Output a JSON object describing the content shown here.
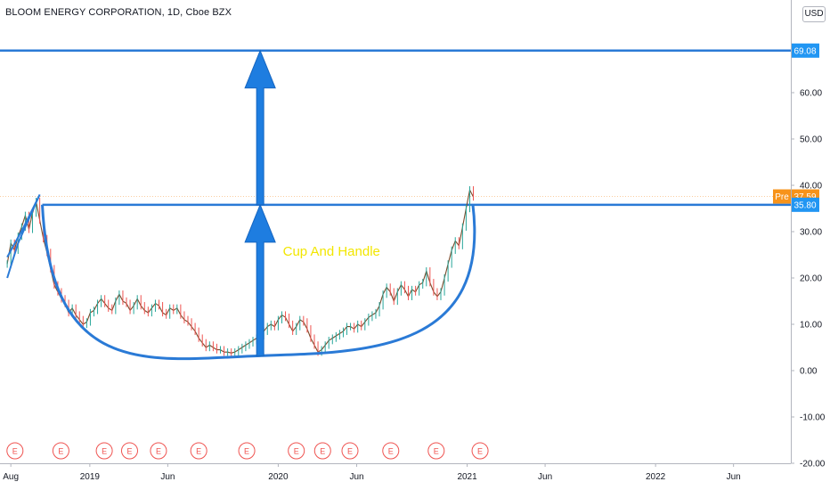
{
  "header": {
    "title": "BLOOM ENERGY CORPORATION, 1D, Cboe BZX",
    "currency": "USD"
  },
  "colors": {
    "accent": "#2a7ad6",
    "arrow": "#1e7de0",
    "label_blue": "#2196f3",
    "label_orange": "#f7931a",
    "annotation_text": "#f2e600",
    "earnings": "#ef5350",
    "candle_up": "#26a69a",
    "candle_down": "#ef5350"
  },
  "chart_data": {
    "type": "line",
    "x": [
      "2018-07-25",
      "2018-08-01",
      "2018-08-08",
      "2018-08-15",
      "2018-08-22",
      "2018-08-29",
      "2018-09-05",
      "2018-09-12",
      "2018-09-19",
      "2018-09-26",
      "2018-10-03",
      "2018-10-10",
      "2018-10-17",
      "2018-10-24",
      "2018-10-31",
      "2018-11-07",
      "2018-11-14",
      "2018-11-21",
      "2018-11-28",
      "2018-12-05",
      "2018-12-12",
      "2018-12-19",
      "2018-12-26",
      "2019-01-02",
      "2019-01-09",
      "2019-01-16",
      "2019-01-23",
      "2019-01-30",
      "2019-02-06",
      "2019-02-13",
      "2019-02-20",
      "2019-02-27",
      "2019-03-06",
      "2019-03-13",
      "2019-03-20",
      "2019-03-27",
      "2019-04-03",
      "2019-04-10",
      "2019-04-17",
      "2019-04-24",
      "2019-05-01",
      "2019-05-08",
      "2019-05-15",
      "2019-05-22",
      "2019-05-29",
      "2019-06-05",
      "2019-06-12",
      "2019-06-19",
      "2019-06-26",
      "2019-07-03",
      "2019-07-10",
      "2019-07-17",
      "2019-07-24",
      "2019-07-31",
      "2019-08-07",
      "2019-08-14",
      "2019-08-21",
      "2019-08-28",
      "2019-09-04",
      "2019-09-11",
      "2019-09-18",
      "2019-09-25",
      "2019-10-02",
      "2019-10-09",
      "2019-10-16",
      "2019-10-23",
      "2019-10-30",
      "2019-11-06",
      "2019-11-13",
      "2019-11-20",
      "2019-11-27",
      "2019-12-04",
      "2019-12-11",
      "2019-12-18",
      "2019-12-25",
      "2020-01-01",
      "2020-01-08",
      "2020-01-15",
      "2020-01-22",
      "2020-01-29",
      "2020-02-05",
      "2020-02-12",
      "2020-02-19",
      "2020-02-26",
      "2020-03-04",
      "2020-03-11",
      "2020-03-18",
      "2020-03-25",
      "2020-04-01",
      "2020-04-08",
      "2020-04-15",
      "2020-04-22",
      "2020-04-29",
      "2020-05-06",
      "2020-05-13",
      "2020-05-20",
      "2020-05-27",
      "2020-06-03",
      "2020-06-10",
      "2020-06-17",
      "2020-06-24",
      "2020-07-01",
      "2020-07-08",
      "2020-07-15",
      "2020-07-22",
      "2020-07-29",
      "2020-08-05",
      "2020-08-12",
      "2020-08-19",
      "2020-08-26",
      "2020-09-02",
      "2020-09-09",
      "2020-09-16",
      "2020-09-23",
      "2020-09-30",
      "2020-10-07",
      "2020-10-14",
      "2020-10-21",
      "2020-10-28",
      "2020-11-04",
      "2020-11-11",
      "2020-11-18",
      "2020-11-25",
      "2020-12-02",
      "2020-12-09",
      "2020-12-16",
      "2020-12-23",
      "2020-12-30",
      "2021-01-06",
      "2021-01-13"
    ],
    "series": [
      {
        "values": [
          23.0,
          27.5,
          26.0,
          29.0,
          31.0,
          33.5,
          30.5,
          34.0,
          36.5,
          32.5,
          28.5,
          25.5,
          22.0,
          18.5,
          17.0,
          15.5,
          14.5,
          12.5,
          13.5,
          12.0,
          11.0,
          10.0,
          10.5,
          12.5,
          13.0,
          14.5,
          15.5,
          14.5,
          13.5,
          13.0,
          15.0,
          16.5,
          15.0,
          14.5,
          13.0,
          14.0,
          15.5,
          14.0,
          13.0,
          12.5,
          13.5,
          14.5,
          14.0,
          12.5,
          12.0,
          13.5,
          13.0,
          13.5,
          12.0,
          11.0,
          10.5,
          9.5,
          8.5,
          7.0,
          6.0,
          5.0,
          5.5,
          5.0,
          4.5,
          4.5,
          4.0,
          4.0,
          3.8,
          4.0,
          4.5,
          5.0,
          5.5,
          6.0,
          6.5,
          7.0,
          7.5,
          8.5,
          9.5,
          10.0,
          9.5,
          11.0,
          12.0,
          11.5,
          10.0,
          8.5,
          9.5,
          11.0,
          10.5,
          9.0,
          7.0,
          5.5,
          4.0,
          4.5,
          5.5,
          6.5,
          7.0,
          7.5,
          8.0,
          8.5,
          9.5,
          9.5,
          9.0,
          10.0,
          9.5,
          10.5,
          11.5,
          12.0,
          12.5,
          14.0,
          16.5,
          18.0,
          17.0,
          15.0,
          17.0,
          18.5,
          17.5,
          16.0,
          17.5,
          17.0,
          18.5,
          19.0,
          21.5,
          19.0,
          17.0,
          16.0,
          17.0,
          20.0,
          23.0,
          26.0,
          28.0,
          27.0,
          31.0,
          35.0,
          39.0,
          37.5
        ]
      }
    ],
    "xlim": [
      "2018-07-11",
      "2022-09-20"
    ],
    "ylim": [
      -20.0,
      80.0
    ],
    "y_ticks": [
      -20,
      -10,
      0,
      10,
      20,
      30,
      40,
      50,
      60
    ],
    "y_tick_labels": [
      "-20.00",
      "-10.00",
      "0.00",
      "10.00",
      "20.00",
      "30.00",
      "40.00",
      "50.00",
      "60.00"
    ],
    "x_ticks": [
      "2018-08-01",
      "2019-01-01",
      "2019-06-01",
      "2020-01-01",
      "2020-06-01",
      "2021-01-01",
      "2021-06-01",
      "2022-01-01",
      "2022-06-01"
    ],
    "x_tick_labels": [
      "Aug",
      "2019",
      "Jun",
      "2020",
      "Jun",
      "2021",
      "Jun",
      "2022",
      "Jun"
    ],
    "price_labels": [
      {
        "prefix": "",
        "value": "69.08",
        "y": 69.08,
        "style": "blue"
      },
      {
        "prefix": "Pre",
        "value": "37.59",
        "y": 37.59,
        "style": "orange"
      },
      {
        "prefix": "",
        "value": "35.80",
        "y": 35.8,
        "style": "blue"
      }
    ],
    "horizontal_lines": [
      {
        "y": 69.08,
        "x_start": "2018-07-11",
        "x_end": "2022-09-20"
      },
      {
        "y": 35.8,
        "x_start": "2018-10-01",
        "x_end": "2022-09-20"
      }
    ],
    "cup": {
      "left": [
        "2018-10-01",
        35.8
      ],
      "bottom": [
        "2019-11-26",
        3.2
      ],
      "right": [
        "2021-01-12",
        35.8
      ]
    },
    "arrows": [
      {
        "x": "2019-11-27",
        "from": 3.2,
        "to": 35.8
      },
      {
        "x": "2019-11-27",
        "from": 35.8,
        "to": 69.08
      }
    ],
    "annotation": {
      "text": "Cup And Handle",
      "x": "2020-01-10",
      "y": 26.0
    },
    "flag": {
      "points": [
        [
          "2018-07-25",
          24.5
        ],
        [
          "2018-08-26",
          31.0
        ],
        [
          "2018-09-26",
          38.0
        ],
        [
          "2018-08-15",
          27.5
        ],
        [
          "2018-07-25",
          20.0
        ]
      ]
    },
    "earnings_markers": {
      "label": "E",
      "dates": [
        "2018-08-09",
        "2018-11-06",
        "2019-01-29",
        "2019-03-19",
        "2019-05-14",
        "2019-07-31",
        "2019-11-01",
        "2020-02-05",
        "2020-03-27",
        "2020-05-19",
        "2020-08-06",
        "2020-11-02",
        "2021-01-26"
      ]
    },
    "grid": false,
    "legend": "none"
  }
}
